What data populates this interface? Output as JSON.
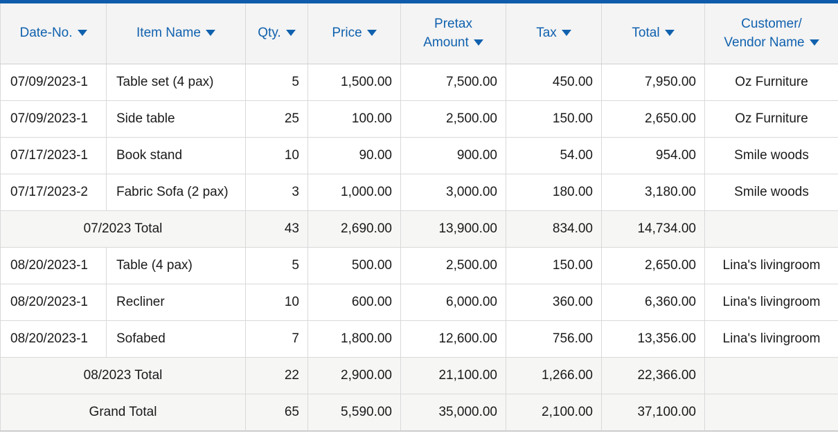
{
  "theme": {
    "accent_blue": "#0e5cab",
    "header_text_blue": "#1061ae",
    "grid_line": "#d9d9d9",
    "outer_border": "#cccccc",
    "header_bg": "#f4f4f4",
    "total_row_bg": "#f6f6f5",
    "body_text": "#1a1a1a",
    "row_bg": "#ffffff"
  },
  "table": {
    "sort_icon": "triangle-down",
    "columns": [
      {
        "key": "date_no",
        "label": "Date-No.",
        "align": "left"
      },
      {
        "key": "item_name",
        "label": "Item Name",
        "align": "left"
      },
      {
        "key": "qty",
        "label": "Qty.",
        "align": "right"
      },
      {
        "key": "price",
        "label": "Price",
        "align": "right"
      },
      {
        "key": "pretax_amount",
        "label": "Pretax\nAmount",
        "align": "right"
      },
      {
        "key": "tax",
        "label": "Tax",
        "align": "right"
      },
      {
        "key": "total",
        "label": "Total",
        "align": "right"
      },
      {
        "key": "customer_vendor",
        "label": "Customer/\nVendor Name",
        "align": "center"
      }
    ],
    "rows": [
      {
        "type": "item",
        "date_no": "07/09/2023-1",
        "item_name": "Table set (4 pax)",
        "qty": "5",
        "price": "1,500.00",
        "pretax_amount": "7,500.00",
        "tax": "450.00",
        "total": "7,950.00",
        "customer_vendor": "Oz Furniture"
      },
      {
        "type": "item",
        "date_no": "07/09/2023-1",
        "item_name": "Side table",
        "qty": "25",
        "price": "100.00",
        "pretax_amount": "2,500.00",
        "tax": "150.00",
        "total": "2,650.00",
        "customer_vendor": "Oz Furniture"
      },
      {
        "type": "item",
        "date_no": "07/17/2023-1",
        "item_name": "Book stand",
        "qty": "10",
        "price": "90.00",
        "pretax_amount": "900.00",
        "tax": "54.00",
        "total": "954.00",
        "customer_vendor": "Smile woods"
      },
      {
        "type": "item",
        "date_no": "07/17/2023-2",
        "item_name": "Fabric Sofa (2 pax)",
        "qty": "3",
        "price": "1,000.00",
        "pretax_amount": "3,000.00",
        "tax": "180.00",
        "total": "3,180.00",
        "customer_vendor": "Smile woods"
      },
      {
        "type": "subtotal",
        "label": "07/2023 Total",
        "qty": "43",
        "price": "2,690.00",
        "pretax_amount": "13,900.00",
        "tax": "834.00",
        "total": "14,734.00",
        "customer_vendor": ""
      },
      {
        "type": "item",
        "date_no": "08/20/2023-1",
        "item_name": "Table (4 pax)",
        "qty": "5",
        "price": "500.00",
        "pretax_amount": "2,500.00",
        "tax": "150.00",
        "total": "2,650.00",
        "customer_vendor": "Lina's livingroom"
      },
      {
        "type": "item",
        "date_no": "08/20/2023-1",
        "item_name": "Recliner",
        "qty": "10",
        "price": "600.00",
        "pretax_amount": "6,000.00",
        "tax": "360.00",
        "total": "6,360.00",
        "customer_vendor": "Lina's livingroom"
      },
      {
        "type": "item",
        "date_no": "08/20/2023-1",
        "item_name": "Sofabed",
        "qty": "7",
        "price": "1,800.00",
        "pretax_amount": "12,600.00",
        "tax": "756.00",
        "total": "13,356.00",
        "customer_vendor": "Lina's livingroom"
      },
      {
        "type": "subtotal",
        "label": "08/2023 Total",
        "qty": "22",
        "price": "2,900.00",
        "pretax_amount": "21,100.00",
        "tax": "1,266.00",
        "total": "22,366.00",
        "customer_vendor": ""
      },
      {
        "type": "grand_total",
        "label": "Grand Total",
        "qty": "65",
        "price": "5,590.00",
        "pretax_amount": "35,000.00",
        "tax": "2,100.00",
        "total": "37,100.00",
        "customer_vendor": ""
      }
    ]
  }
}
